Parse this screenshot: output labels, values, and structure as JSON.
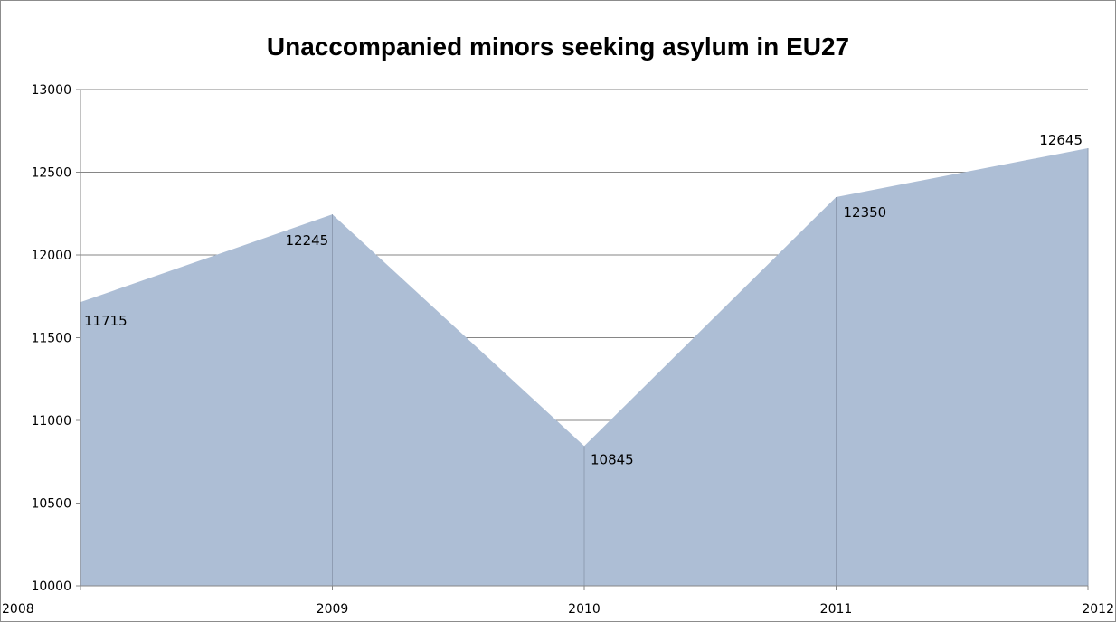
{
  "chart_data": {
    "type": "area",
    "title": "Unaccompanied minors seeking asylum in EU27",
    "xlabel": "",
    "ylabel": "",
    "categories": [
      "2008",
      "2009",
      "2010",
      "2011",
      "2012"
    ],
    "values": [
      11715,
      12245,
      10845,
      12350,
      12645
    ],
    "data_labels": [
      "11715",
      "12245",
      "10845",
      "12350",
      "12645"
    ],
    "ylim": [
      10000,
      13000
    ],
    "y_ticks": [
      10000,
      10500,
      11000,
      11500,
      12000,
      12500,
      13000
    ],
    "y_tick_labels": [
      "10000",
      "10500",
      "11000",
      "11500",
      "12000",
      "12500",
      "13000"
    ],
    "grid": true,
    "legend": "none",
    "colors": {
      "area_fill": "#adbed5",
      "gridline": "#868686",
      "axis": "#868686"
    }
  }
}
